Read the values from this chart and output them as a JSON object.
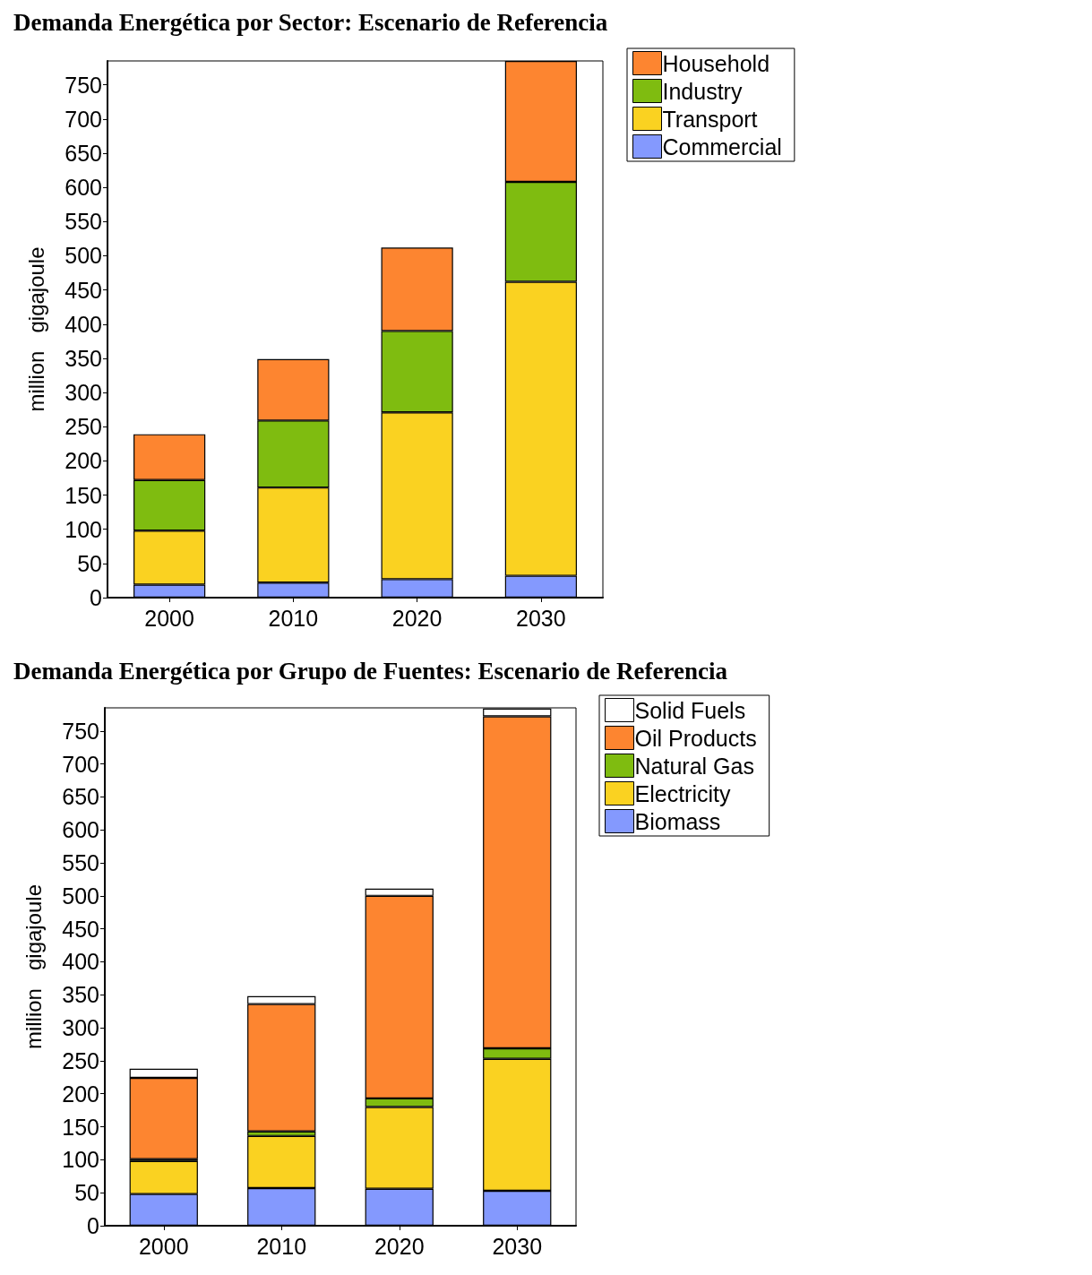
{
  "chart_data": [
    {
      "type": "bar",
      "title": "Demanda Energética por Sector: Escenario de Referencia",
      "ylabel": "million   gigajoule",
      "categories": [
        "2000",
        "2010",
        "2020",
        "2030"
      ],
      "stacked": true,
      "legend": "right",
      "grid": false,
      "ylim": [
        0,
        785
      ],
      "yticks": [
        0,
        50,
        100,
        150,
        200,
        250,
        300,
        350,
        400,
        450,
        500,
        550,
        600,
        650,
        700,
        750
      ],
      "series": [
        {
          "name": "Commercial",
          "color": "#8499fe",
          "values": [
            19,
            22,
            27,
            32
          ]
        },
        {
          "name": "Transport",
          "color": "#fad221",
          "values": [
            79,
            139,
            244,
            430
          ]
        },
        {
          "name": "Industry",
          "color": "#7fbc10",
          "values": [
            74,
            98,
            119,
            146
          ]
        },
        {
          "name": "Household",
          "color": "#fd8530",
          "values": [
            67,
            90,
            122,
            177
          ]
        }
      ]
    },
    {
      "type": "bar",
      "title": "Demanda Energética por Grupo de Fuentes: Escenario de Referencia",
      "ylabel": "million   gigajoule",
      "categories": [
        "2000",
        "2010",
        "2020",
        "2030"
      ],
      "stacked": true,
      "legend": "right",
      "grid": false,
      "ylim": [
        0,
        785
      ],
      "yticks": [
        0,
        50,
        100,
        150,
        200,
        250,
        300,
        350,
        400,
        450,
        500,
        550,
        600,
        650,
        700,
        750
      ],
      "series": [
        {
          "name": "Biomass",
          "color": "#8499fe",
          "values": [
            48,
            57,
            56,
            53
          ]
        },
        {
          "name": "Electricity",
          "color": "#fad221",
          "values": [
            50,
            79,
            124,
            200
          ]
        },
        {
          "name": "Natural Gas",
          "color": "#7fbc10",
          "values": [
            3,
            7,
            13,
            16
          ]
        },
        {
          "name": "Oil Products",
          "color": "#fd8530",
          "values": [
            123,
            193,
            307,
            503
          ]
        },
        {
          "name": "Solid Fuels",
          "color": "#ffffff",
          "values": [
            14,
            12,
            11,
            12
          ]
        }
      ]
    }
  ]
}
